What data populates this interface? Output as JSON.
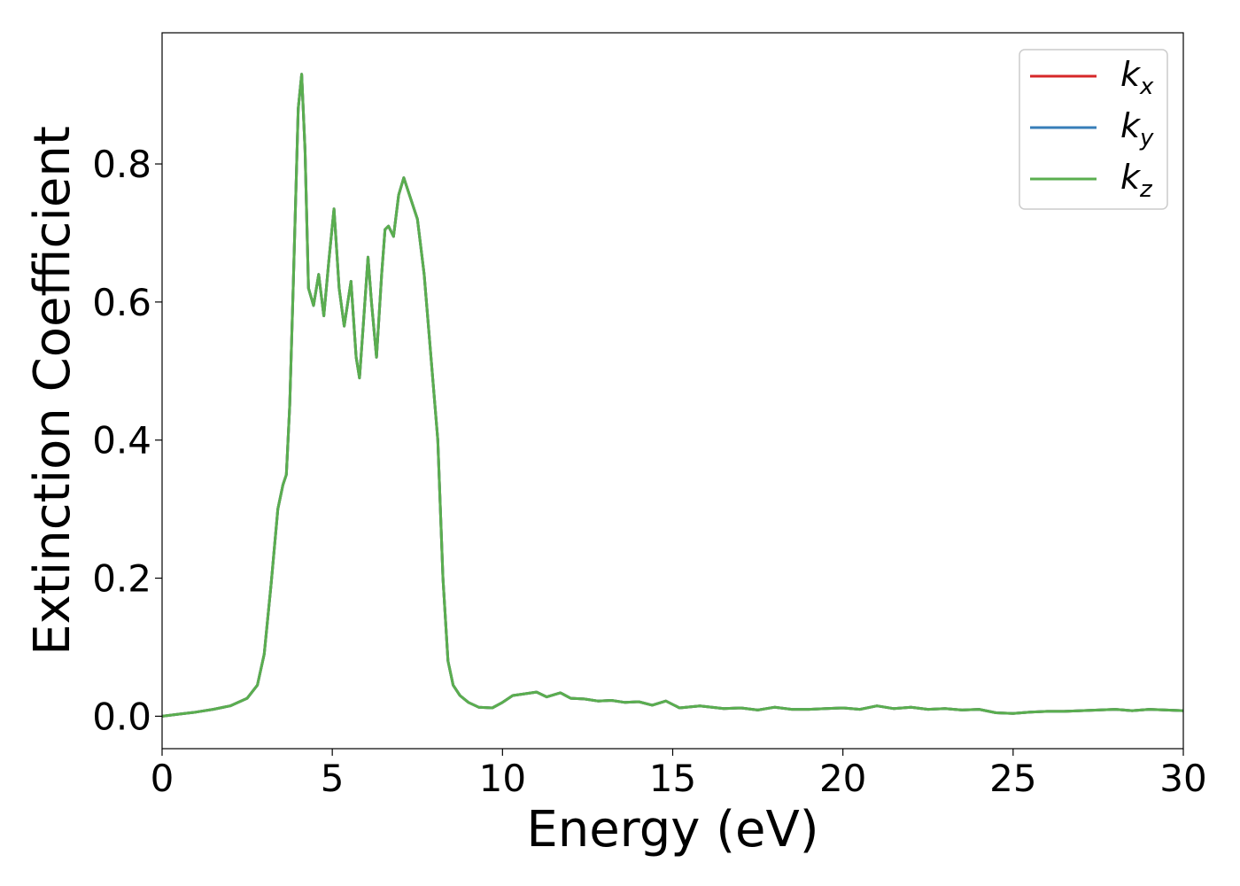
{
  "chart_data": {
    "type": "line",
    "title": "",
    "xlabel": "Energy (eV)",
    "ylabel": "Extinction Coefficient",
    "xlim": [
      0,
      30
    ],
    "ylim": [
      -0.047,
      0.99
    ],
    "xticks": [
      0,
      5,
      10,
      15,
      20,
      25,
      30
    ],
    "xtick_labels": [
      "0",
      "5",
      "10",
      "15",
      "20",
      "25",
      "30"
    ],
    "yticks": [
      0.0,
      0.2,
      0.4,
      0.6,
      0.8
    ],
    "ytick_labels": [
      "0.0",
      "0.2",
      "0.4",
      "0.6",
      "0.8"
    ],
    "grid": false,
    "legend_position": "top-right",
    "x": [
      0,
      0.5,
      1,
      1.5,
      2,
      2.5,
      2.8,
      3.0,
      3.2,
      3.4,
      3.55,
      3.65,
      3.75,
      3.85,
      4.0,
      4.1,
      4.2,
      4.3,
      4.45,
      4.6,
      4.75,
      4.9,
      5.05,
      5.2,
      5.35,
      5.55,
      5.7,
      5.8,
      5.9,
      6.05,
      6.15,
      6.3,
      6.45,
      6.55,
      6.65,
      6.8,
      6.95,
      7.1,
      7.3,
      7.5,
      7.7,
      7.9,
      8.1,
      8.25,
      8.4,
      8.55,
      8.75,
      9.0,
      9.3,
      9.7,
      10.0,
      10.3,
      10.6,
      11.0,
      11.3,
      11.7,
      12.0,
      12.4,
      12.8,
      13.2,
      13.6,
      14.0,
      14.4,
      14.8,
      15.2,
      15.8,
      16.5,
      17.0,
      17.5,
      18.0,
      18.5,
      19.0,
      19.5,
      20.0,
      20.5,
      21.0,
      21.5,
      22.0,
      22.5,
      23.0,
      23.5,
      24.0,
      24.5,
      25.0,
      25.5,
      26.0,
      26.5,
      27.0,
      27.5,
      28.0,
      28.5,
      29.0,
      29.5,
      30.0
    ],
    "series": [
      {
        "name": "k_x",
        "color": "#d62728",
        "values": [
          0.0,
          0.003,
          0.006,
          0.01,
          0.015,
          0.026,
          0.045,
          0.09,
          0.19,
          0.3,
          0.335,
          0.35,
          0.45,
          0.62,
          0.88,
          0.93,
          0.82,
          0.62,
          0.595,
          0.64,
          0.58,
          0.66,
          0.735,
          0.62,
          0.565,
          0.63,
          0.52,
          0.49,
          0.56,
          0.665,
          0.6,
          0.52,
          0.64,
          0.705,
          0.71,
          0.695,
          0.755,
          0.78,
          0.75,
          0.72,
          0.64,
          0.52,
          0.4,
          0.2,
          0.08,
          0.045,
          0.03,
          0.02,
          0.013,
          0.012,
          0.02,
          0.03,
          0.032,
          0.035,
          0.028,
          0.034,
          0.026,
          0.025,
          0.022,
          0.023,
          0.02,
          0.021,
          0.016,
          0.022,
          0.012,
          0.015,
          0.011,
          0.012,
          0.009,
          0.013,
          0.01,
          0.01,
          0.011,
          0.012,
          0.01,
          0.015,
          0.011,
          0.013,
          0.01,
          0.011,
          0.009,
          0.01,
          0.005,
          0.004,
          0.006,
          0.007,
          0.007,
          0.008,
          0.009,
          0.01,
          0.008,
          0.01,
          0.009,
          0.008
        ]
      },
      {
        "name": "k_y",
        "color": "#377eb8",
        "values": [
          0.0,
          0.003,
          0.006,
          0.01,
          0.015,
          0.026,
          0.045,
          0.09,
          0.19,
          0.3,
          0.335,
          0.35,
          0.45,
          0.62,
          0.88,
          0.93,
          0.82,
          0.62,
          0.595,
          0.64,
          0.58,
          0.66,
          0.735,
          0.62,
          0.565,
          0.63,
          0.52,
          0.49,
          0.56,
          0.665,
          0.6,
          0.52,
          0.64,
          0.705,
          0.71,
          0.695,
          0.755,
          0.78,
          0.75,
          0.72,
          0.64,
          0.52,
          0.4,
          0.2,
          0.08,
          0.045,
          0.03,
          0.02,
          0.013,
          0.012,
          0.02,
          0.03,
          0.032,
          0.035,
          0.028,
          0.034,
          0.026,
          0.025,
          0.022,
          0.023,
          0.02,
          0.021,
          0.016,
          0.022,
          0.012,
          0.015,
          0.011,
          0.012,
          0.009,
          0.013,
          0.01,
          0.01,
          0.011,
          0.012,
          0.01,
          0.015,
          0.011,
          0.013,
          0.01,
          0.011,
          0.009,
          0.01,
          0.005,
          0.004,
          0.006,
          0.007,
          0.007,
          0.008,
          0.009,
          0.01,
          0.008,
          0.01,
          0.009,
          0.008
        ]
      },
      {
        "name": "k_z",
        "color": "#5aae4f",
        "values": [
          0.0,
          0.003,
          0.006,
          0.01,
          0.015,
          0.026,
          0.045,
          0.09,
          0.19,
          0.3,
          0.335,
          0.35,
          0.45,
          0.62,
          0.88,
          0.93,
          0.82,
          0.62,
          0.595,
          0.64,
          0.58,
          0.66,
          0.735,
          0.62,
          0.565,
          0.63,
          0.52,
          0.49,
          0.56,
          0.665,
          0.6,
          0.52,
          0.64,
          0.705,
          0.71,
          0.695,
          0.755,
          0.78,
          0.75,
          0.72,
          0.64,
          0.52,
          0.4,
          0.2,
          0.08,
          0.045,
          0.03,
          0.02,
          0.013,
          0.012,
          0.02,
          0.03,
          0.032,
          0.035,
          0.028,
          0.034,
          0.026,
          0.025,
          0.022,
          0.023,
          0.02,
          0.021,
          0.016,
          0.022,
          0.012,
          0.015,
          0.011,
          0.012,
          0.009,
          0.013,
          0.01,
          0.01,
          0.011,
          0.012,
          0.01,
          0.015,
          0.011,
          0.013,
          0.01,
          0.011,
          0.009,
          0.01,
          0.005,
          0.004,
          0.006,
          0.007,
          0.007,
          0.008,
          0.009,
          0.01,
          0.008,
          0.01,
          0.009,
          0.008
        ]
      }
    ],
    "legend": [
      {
        "base": "k",
        "sub": "x",
        "color": "#d62728"
      },
      {
        "base": "k",
        "sub": "y",
        "color": "#377eb8"
      },
      {
        "base": "k",
        "sub": "z",
        "color": "#5aae4f"
      }
    ]
  }
}
